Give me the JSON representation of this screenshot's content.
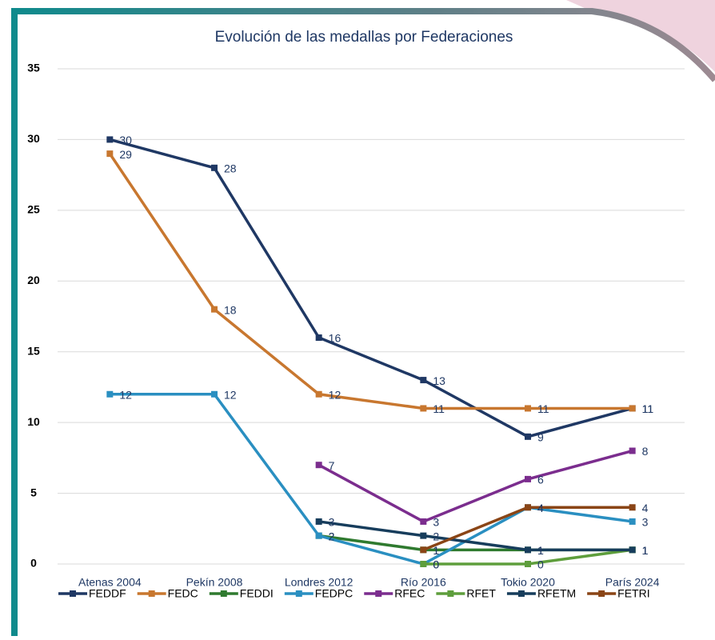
{
  "chart_data": {
    "type": "line",
    "title": "Evolución de las medallas por Federaciones",
    "categories": [
      "Atenas 2004",
      "Pekín 2008",
      "Londres 2012",
      "Río 2016",
      "Tokio 2020",
      "París 2024"
    ],
    "series": [
      {
        "name": "FEDDF",
        "color": "#1f3864",
        "values": [
          30,
          28,
          16,
          13,
          9,
          11
        ]
      },
      {
        "name": "FEDC",
        "color": "#c8772f",
        "values": [
          29,
          18,
          12,
          11,
          11,
          11
        ]
      },
      {
        "name": "FEDDI",
        "color": "#2f7a2f",
        "values": [
          null,
          null,
          2,
          1,
          1,
          1
        ]
      },
      {
        "name": "FEDPC",
        "color": "#2a8fc1",
        "values": [
          12,
          12,
          2,
          0,
          4,
          3
        ]
      },
      {
        "name": "RFEC",
        "color": "#7b2d8e",
        "values": [
          null,
          null,
          7,
          3,
          6,
          8
        ]
      },
      {
        "name": "RFET",
        "color": "#5e9e3c",
        "values": [
          null,
          null,
          null,
          0,
          0,
          1
        ]
      },
      {
        "name": "RFETM",
        "color": "#173d5c",
        "values": [
          null,
          null,
          3,
          2,
          1,
          1
        ]
      },
      {
        "name": "FETRI",
        "color": "#8a4516",
        "values": [
          null,
          null,
          null,
          1,
          4,
          4
        ]
      }
    ],
    "ylim": [
      0,
      35
    ],
    "yticks": [
      0,
      5,
      10,
      15,
      20,
      25,
      30,
      35
    ],
    "grid": true,
    "legend": "bottom"
  }
}
